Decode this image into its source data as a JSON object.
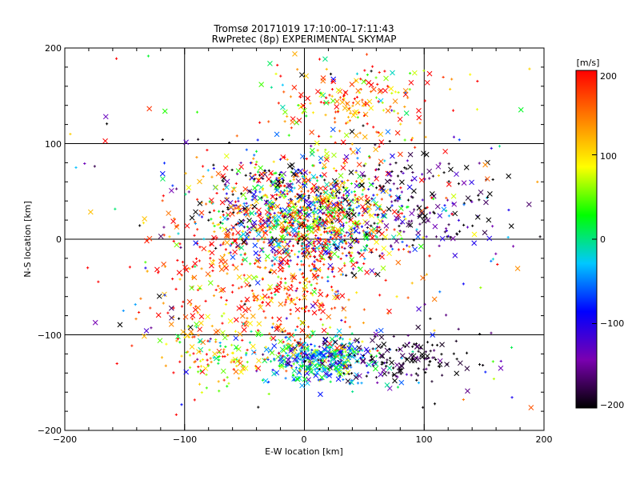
{
  "chart_data": {
    "type": "scatter",
    "title": "Tromsø 20171019  17:10:00–17:11:43",
    "subtitle": "RwPretec (8p) EXPERIMENTAL SKYMAP",
    "xlabel": "E-W location [km]",
    "ylabel": "N-S location [km]",
    "xlim": [
      -200,
      200
    ],
    "ylim": [
      -200,
      200
    ],
    "xticks": [
      -200,
      -100,
      0,
      100,
      200
    ],
    "yticks": [
      -200,
      -100,
      0,
      100,
      200
    ],
    "xtick_labels": [
      "−200",
      "−100",
      "0",
      "100",
      "200"
    ],
    "ytick_labels": [
      "−200",
      "−100",
      "0",
      "100",
      "200"
    ],
    "grid": true,
    "grid_lines_x": [
      -100,
      0,
      100
    ],
    "grid_lines_y": [
      -100,
      0,
      100
    ],
    "colorbar": {
      "label": "[m/s]",
      "range": [
        -200,
        200
      ],
      "ticks": [
        200,
        100,
        0,
        -100,
        -200
      ],
      "tick_labels": [
        "200",
        "100",
        "0",
        "−100",
        "−200"
      ],
      "colors": [
        "#000000",
        "#7a00b0",
        "#0000ff",
        "#00c8ff",
        "#00ff00",
        "#ffff00",
        "#ff8000",
        "#ff0000"
      ]
    },
    "markers": [
      "x",
      "+"
    ],
    "clusters": [
      {
        "x": 10,
        "y": 20,
        "sx": 35,
        "sy": 28,
        "n": 900,
        "v": 60,
        "vs": 160
      },
      {
        "x": -40,
        "y": 40,
        "sx": 30,
        "sy": 25,
        "n": 250,
        "v": 0,
        "vs": 180
      },
      {
        "x": 15,
        "y": -125,
        "sx": 25,
        "sy": 12,
        "n": 420,
        "v": -30,
        "vs": 70
      },
      {
        "x": 80,
        "y": -125,
        "sx": 30,
        "sy": 15,
        "n": 150,
        "v": -190,
        "vs": 30
      },
      {
        "x": -70,
        "y": -120,
        "sx": 22,
        "sy": 18,
        "n": 120,
        "v": 110,
        "vs": 80
      },
      {
        "x": 40,
        "y": 140,
        "sx": 35,
        "sy": 25,
        "n": 200,
        "v": 140,
        "vs": 80
      },
      {
        "x": 90,
        "y": 40,
        "sx": 45,
        "sy": 30,
        "n": 220,
        "v": -170,
        "vs": 60
      },
      {
        "x": -10,
        "y": -60,
        "sx": 25,
        "sy": 30,
        "n": 200,
        "v": 180,
        "vs": 60
      },
      {
        "x": -80,
        "y": -40,
        "sx": 30,
        "sy": 40,
        "n": 160,
        "v": 170,
        "vs": 60
      },
      {
        "x": 0,
        "y": 0,
        "sx": 120,
        "sy": 90,
        "n": 280,
        "v": 0,
        "vs": 200
      }
    ]
  }
}
